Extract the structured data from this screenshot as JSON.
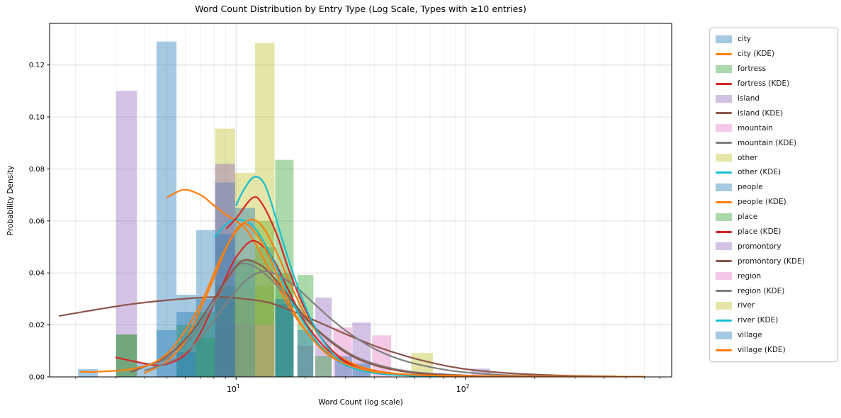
{
  "title": "Word Count Distribution by Entry Type (Log Scale, Types with ≥10 entries)",
  "axes": {
    "xlabel": "Word Count (log scale)",
    "ylabel": "Probability Density",
    "x_scale": "log",
    "xlim": [
      1.54,
      790
    ],
    "ylim": [
      0,
      0.136
    ],
    "y_ticks": [
      {
        "label": "0.00",
        "value": 0.0
      },
      {
        "label": "0.02",
        "value": 0.02
      },
      {
        "label": "0.04",
        "value": 0.04
      },
      {
        "label": "0.06",
        "value": 0.06
      },
      {
        "label": "0.08",
        "value": 0.08
      },
      {
        "label": "0.10",
        "value": 0.1
      },
      {
        "label": "0.12",
        "value": 0.12
      }
    ],
    "x_major_ticks": [
      {
        "value": 10,
        "base": "10",
        "sup": "1"
      },
      {
        "value": 100,
        "base": "10",
        "sup": "2"
      }
    ],
    "x_minor_ticks": [
      2,
      3,
      4,
      5,
      6,
      7,
      8,
      9,
      20,
      30,
      40,
      50,
      60,
      70,
      80,
      90,
      200,
      300,
      400,
      500,
      600,
      700
    ],
    "grid": true
  },
  "palette": {
    "blue": "#1f77b4",
    "orange": "#ff7f0e",
    "green": "#2ca02c",
    "red": "#d62728",
    "purple": "#9467bd",
    "brown": "#8c564b",
    "pink": "#e377c2",
    "gray": "#7f7f7f",
    "olive": "#bcbd22",
    "cyan": "#17becf"
  },
  "hist_alpha": 0.4,
  "legend": {
    "entries": [
      {
        "label": "city",
        "type": "patch",
        "color": "blue"
      },
      {
        "label": "city (KDE)",
        "type": "line",
        "color": "orange"
      },
      {
        "label": "fortress",
        "type": "patch",
        "color": "green"
      },
      {
        "label": "fortress (KDE)",
        "type": "line",
        "color": "red"
      },
      {
        "label": "island",
        "type": "patch",
        "color": "purple"
      },
      {
        "label": "island (KDE)",
        "type": "line",
        "color": "brown"
      },
      {
        "label": "mountain",
        "type": "patch",
        "color": "pink"
      },
      {
        "label": "mountain (KDE)",
        "type": "line",
        "color": "gray"
      },
      {
        "label": "other",
        "type": "patch",
        "color": "olive"
      },
      {
        "label": "other (KDE)",
        "type": "line",
        "color": "cyan"
      },
      {
        "label": "people",
        "type": "patch",
        "color": "blue"
      },
      {
        "label": "people (KDE)",
        "type": "line",
        "color": "orange"
      },
      {
        "label": "place",
        "type": "patch",
        "color": "green"
      },
      {
        "label": "place (KDE)",
        "type": "line",
        "color": "red"
      },
      {
        "label": "promontory",
        "type": "patch",
        "color": "purple"
      },
      {
        "label": "promontory (KDE)",
        "type": "line",
        "color": "brown"
      },
      {
        "label": "region",
        "type": "patch",
        "color": "pink"
      },
      {
        "label": "region (KDE)",
        "type": "line",
        "color": "gray"
      },
      {
        "label": "river",
        "type": "patch",
        "color": "olive"
      },
      {
        "label": "river (KDE)",
        "type": "line",
        "color": "cyan"
      },
      {
        "label": "village",
        "type": "patch",
        "color": "blue"
      },
      {
        "label": "village (KDE)",
        "type": "line",
        "color": "orange"
      }
    ]
  },
  "chart_data": {
    "type": "histogram+kde",
    "title": "Word Count Distribution by Entry Type (Log Scale, Types with ≥10 entries)",
    "xlabel": "Word Count (log scale)",
    "ylabel": "Probability Density",
    "x_scale": "log",
    "xlim": [
      1.54,
      790
    ],
    "ylim": [
      0,
      0.136
    ],
    "legend_position": "upper right, outside axes",
    "series": [
      {
        "name": "city",
        "hist_color": "blue",
        "kde_color": "orange",
        "bins": [
          [
            4.5,
            5.5,
            0.129
          ],
          [
            5.5,
            6.7,
            0.0316
          ],
          [
            6.7,
            8.1,
            0.0565
          ]
        ],
        "kde": [
          [
            5.0,
            0.069
          ],
          [
            5.9,
            0.072
          ],
          [
            7,
            0.07
          ],
          [
            8,
            0.066
          ],
          [
            9,
            0.0625
          ],
          [
            10,
            0.06
          ],
          [
            11,
            0.057
          ],
          [
            12,
            0.052
          ],
          [
            13,
            0.0465
          ],
          [
            15,
            0.036
          ],
          [
            17,
            0.027
          ],
          [
            20,
            0.018
          ],
          [
            25,
            0.0095
          ],
          [
            30,
            0.005
          ],
          [
            40,
            0.0018
          ],
          [
            60,
            0.0005
          ],
          [
            100,
            0.0002
          ]
        ]
      },
      {
        "name": "fortress",
        "hist_color": "green",
        "kde_color": "red",
        "bins": [
          [
            3.0,
            3.7,
            0.0163
          ],
          [
            5.5,
            6.7,
            0.02
          ],
          [
            6.7,
            8.1,
            0.025
          ],
          [
            8.1,
            9.9,
            0.03
          ],
          [
            9.9,
            12.1,
            0.045
          ],
          [
            14.8,
            17.8,
            0.0835
          ]
        ],
        "kde": [
          [
            3.0,
            0.0075
          ],
          [
            3.6,
            0.006
          ],
          [
            4.7,
            0.0045
          ],
          [
            6,
            0.0085
          ],
          [
            7,
            0.017
          ],
          [
            8,
            0.028
          ],
          [
            9,
            0.038
          ],
          [
            10,
            0.046
          ],
          [
            11.7,
            0.0523
          ],
          [
            13.5,
            0.049
          ],
          [
            15,
            0.043
          ],
          [
            17,
            0.033
          ],
          [
            20,
            0.021
          ],
          [
            24,
            0.012
          ],
          [
            30,
            0.0055
          ],
          [
            40,
            0.002
          ],
          [
            60,
            0.0006
          ],
          [
            100,
            0.0002
          ]
        ]
      },
      {
        "name": "island",
        "hist_color": "purple",
        "kde_color": "brown",
        "bins": [
          [
            3.0,
            3.7,
            0.11
          ],
          [
            8.1,
            9.9,
            0.02
          ],
          [
            22.1,
            26.1,
            0.0305
          ]
        ],
        "kde": [
          [
            1.7,
            0.0235
          ],
          [
            2.5,
            0.026
          ],
          [
            3.5,
            0.028
          ],
          [
            5,
            0.0295
          ],
          [
            7,
            0.0305
          ],
          [
            8.7,
            0.0307
          ],
          [
            11,
            0.03
          ],
          [
            14,
            0.0285
          ],
          [
            18,
            0.025
          ],
          [
            23,
            0.021
          ],
          [
            30,
            0.0165
          ],
          [
            40,
            0.012
          ],
          [
            55,
            0.008
          ],
          [
            75,
            0.005
          ],
          [
            100,
            0.003
          ],
          [
            150,
            0.0015
          ],
          [
            250,
            0.0006
          ],
          [
            450,
            0.0002
          ]
        ]
      },
      {
        "name": "mountain",
        "hist_color": "pink",
        "kde_color": "gray",
        "bins": [
          [
            9.9,
            12.1,
            0.02
          ],
          [
            18.5,
            21.7,
            0.012
          ],
          [
            26.5,
            32.0,
            0.019
          ]
        ],
        "kde": [
          [
            3.5,
            0.003
          ],
          [
            5,
            0.007
          ],
          [
            6.5,
            0.016
          ],
          [
            8,
            0.028
          ],
          [
            9.5,
            0.039
          ],
          [
            10.4,
            0.0435
          ],
          [
            12,
            0.0425
          ],
          [
            14,
            0.038
          ],
          [
            17,
            0.03
          ],
          [
            20,
            0.0225
          ],
          [
            25,
            0.015
          ],
          [
            32,
            0.0085
          ],
          [
            42,
            0.0045
          ],
          [
            60,
            0.0018
          ],
          [
            100,
            0.0006
          ],
          [
            160,
            0.0002
          ]
        ]
      },
      {
        "name": "other",
        "hist_color": "olive",
        "kde_color": "cyan",
        "bins": [
          [
            8.1,
            9.9,
            0.0955
          ],
          [
            9.9,
            12.1,
            0.0785
          ],
          [
            12.1,
            14.7,
            0.035
          ]
        ],
        "kde": [
          [
            8.1,
            0.054
          ],
          [
            9,
            0.0585
          ],
          [
            10,
            0.0605
          ],
          [
            11.5,
            0.059
          ],
          [
            13,
            0.053
          ],
          [
            15,
            0.042
          ],
          [
            17,
            0.031
          ],
          [
            20,
            0.02
          ],
          [
            24,
            0.0105
          ],
          [
            30,
            0.0045
          ],
          [
            40,
            0.0015
          ],
          [
            60,
            0.0005
          ],
          [
            100,
            0.0002
          ]
        ]
      },
      {
        "name": "people",
        "hist_color": "blue",
        "kde_color": "orange",
        "bins": [
          [
            4.5,
            5.5,
            0.018
          ],
          [
            5.5,
            6.7,
            0.0095
          ],
          [
            8.1,
            9.9,
            0.0748
          ],
          [
            12.1,
            14.7,
            0.05
          ],
          [
            14.8,
            17.8,
            0.028
          ],
          [
            27,
            32,
            0.008
          ]
        ],
        "kde": [
          [
            4,
            0.0015
          ],
          [
            5,
            0.006
          ],
          [
            6,
            0.014
          ],
          [
            7,
            0.026
          ],
          [
            8,
            0.038
          ],
          [
            9,
            0.049
          ],
          [
            10,
            0.056
          ],
          [
            11.5,
            0.0605
          ],
          [
            13,
            0.058
          ],
          [
            15,
            0.048
          ],
          [
            17,
            0.037
          ],
          [
            20,
            0.024
          ],
          [
            25,
            0.012
          ],
          [
            30,
            0.0065
          ],
          [
            40,
            0.0025
          ],
          [
            60,
            0.0008
          ],
          [
            120,
            0.0002
          ]
        ]
      },
      {
        "name": "place",
        "hist_color": "green",
        "kde_color": "red",
        "bins": [
          [
            3.0,
            3.7,
            0.0163
          ],
          [
            6.7,
            8.1,
            0.015
          ],
          [
            8.1,
            9.9,
            0.035
          ],
          [
            12.1,
            14.7,
            0.06
          ],
          [
            14.8,
            17.8,
            0.04
          ],
          [
            18.5,
            21.7,
            0.0392
          ],
          [
            22.1,
            26.1,
            0.008
          ]
        ],
        "kde": [
          [
            9.1,
            0.0572
          ],
          [
            10,
            0.061
          ],
          [
            11.8,
            0.0689
          ],
          [
            13,
            0.0665
          ],
          [
            15,
            0.055
          ],
          [
            17,
            0.041
          ],
          [
            20,
            0.026
          ],
          [
            24,
            0.014
          ],
          [
            30,
            0.006
          ],
          [
            40,
            0.002
          ],
          [
            70,
            0.0005
          ]
        ]
      },
      {
        "name": "promontory",
        "hist_color": "purple",
        "kde_color": "brown",
        "bins": [
          [
            8.1,
            9.9,
            0.082
          ],
          [
            32.1,
            38.6,
            0.0209
          ],
          [
            106,
            128,
            0.0032
          ]
        ],
        "kde": [
          [
            3.5,
            0.002
          ],
          [
            5,
            0.008
          ],
          [
            6.5,
            0.018
          ],
          [
            8,
            0.03
          ],
          [
            9.5,
            0.04
          ],
          [
            10.8,
            0.0449
          ],
          [
            12.5,
            0.0435
          ],
          [
            14,
            0.04
          ],
          [
            17,
            0.031
          ],
          [
            20,
            0.023
          ],
          [
            25,
            0.0145
          ],
          [
            32,
            0.008
          ],
          [
            42,
            0.004
          ],
          [
            60,
            0.0015
          ],
          [
            100,
            0.0005
          ],
          [
            150,
            0.0002
          ]
        ]
      },
      {
        "name": "region",
        "hist_color": "pink",
        "kde_color": "gray",
        "bins": [
          [
            12.1,
            14.7,
            0.02
          ],
          [
            39.2,
            47.4,
            0.016
          ]
        ],
        "kde": [
          [
            4,
            0.0025
          ],
          [
            5.5,
            0.007
          ],
          [
            7,
            0.015
          ],
          [
            9,
            0.028
          ],
          [
            11,
            0.037
          ],
          [
            13,
            0.0405
          ],
          [
            15,
            0.0395
          ],
          [
            18,
            0.035
          ],
          [
            22,
            0.028
          ],
          [
            27,
            0.021
          ],
          [
            34,
            0.0145
          ],
          [
            43,
            0.0095
          ],
          [
            55,
            0.006
          ],
          [
            70,
            0.0038
          ],
          [
            90,
            0.0022
          ],
          [
            120,
            0.0012
          ],
          [
            160,
            0.0006
          ],
          [
            250,
            0.0002
          ]
        ]
      },
      {
        "name": "river",
        "hist_color": "olive",
        "kde_color": "cyan",
        "bins": [
          [
            9.9,
            12.1,
            0.03
          ],
          [
            12.1,
            14.7,
            0.1285
          ],
          [
            58,
            72,
            0.0092
          ]
        ],
        "kde": [
          [
            10,
            0.066
          ],
          [
            10.8,
            0.072
          ],
          [
            11.9,
            0.0768
          ],
          [
            13,
            0.0755
          ],
          [
            14,
            0.069
          ],
          [
            16,
            0.052
          ],
          [
            18,
            0.038
          ],
          [
            21,
            0.023
          ],
          [
            25,
            0.0115
          ],
          [
            30,
            0.005
          ],
          [
            40,
            0.0015
          ],
          [
            60,
            0.0004
          ]
        ]
      },
      {
        "name": "village",
        "hist_color": "blue",
        "kde_color": "orange",
        "bins": [
          [
            2.05,
            2.5,
            0.003
          ],
          [
            3.7,
            4.5,
            0.0055
          ],
          [
            5.5,
            6.7,
            0.025
          ],
          [
            6.7,
            8.1,
            0.03
          ],
          [
            8.1,
            9.9,
            0.055
          ],
          [
            9.9,
            12.1,
            0.065
          ],
          [
            14.8,
            17.8,
            0.03
          ],
          [
            18.5,
            21.7,
            0.018
          ],
          [
            32.1,
            38.6,
            0.0051
          ]
        ],
        "kde": [
          [
            2.1,
            0.002
          ],
          [
            2.5,
            0.002
          ],
          [
            3.5,
            0.003
          ],
          [
            4.5,
            0.006
          ],
          [
            5.5,
            0.013
          ],
          [
            7,
            0.028
          ],
          [
            8.5,
            0.045
          ],
          [
            10.4,
            0.0583
          ],
          [
            12,
            0.056
          ],
          [
            14,
            0.046
          ],
          [
            16,
            0.034
          ],
          [
            19,
            0.021
          ],
          [
            24,
            0.01
          ],
          [
            30,
            0.005
          ],
          [
            40,
            0.002
          ],
          [
            60,
            0.0008
          ],
          [
            100,
            0.0004
          ],
          [
            200,
            0.0002
          ],
          [
            600,
            0.0001
          ]
        ]
      }
    ]
  }
}
